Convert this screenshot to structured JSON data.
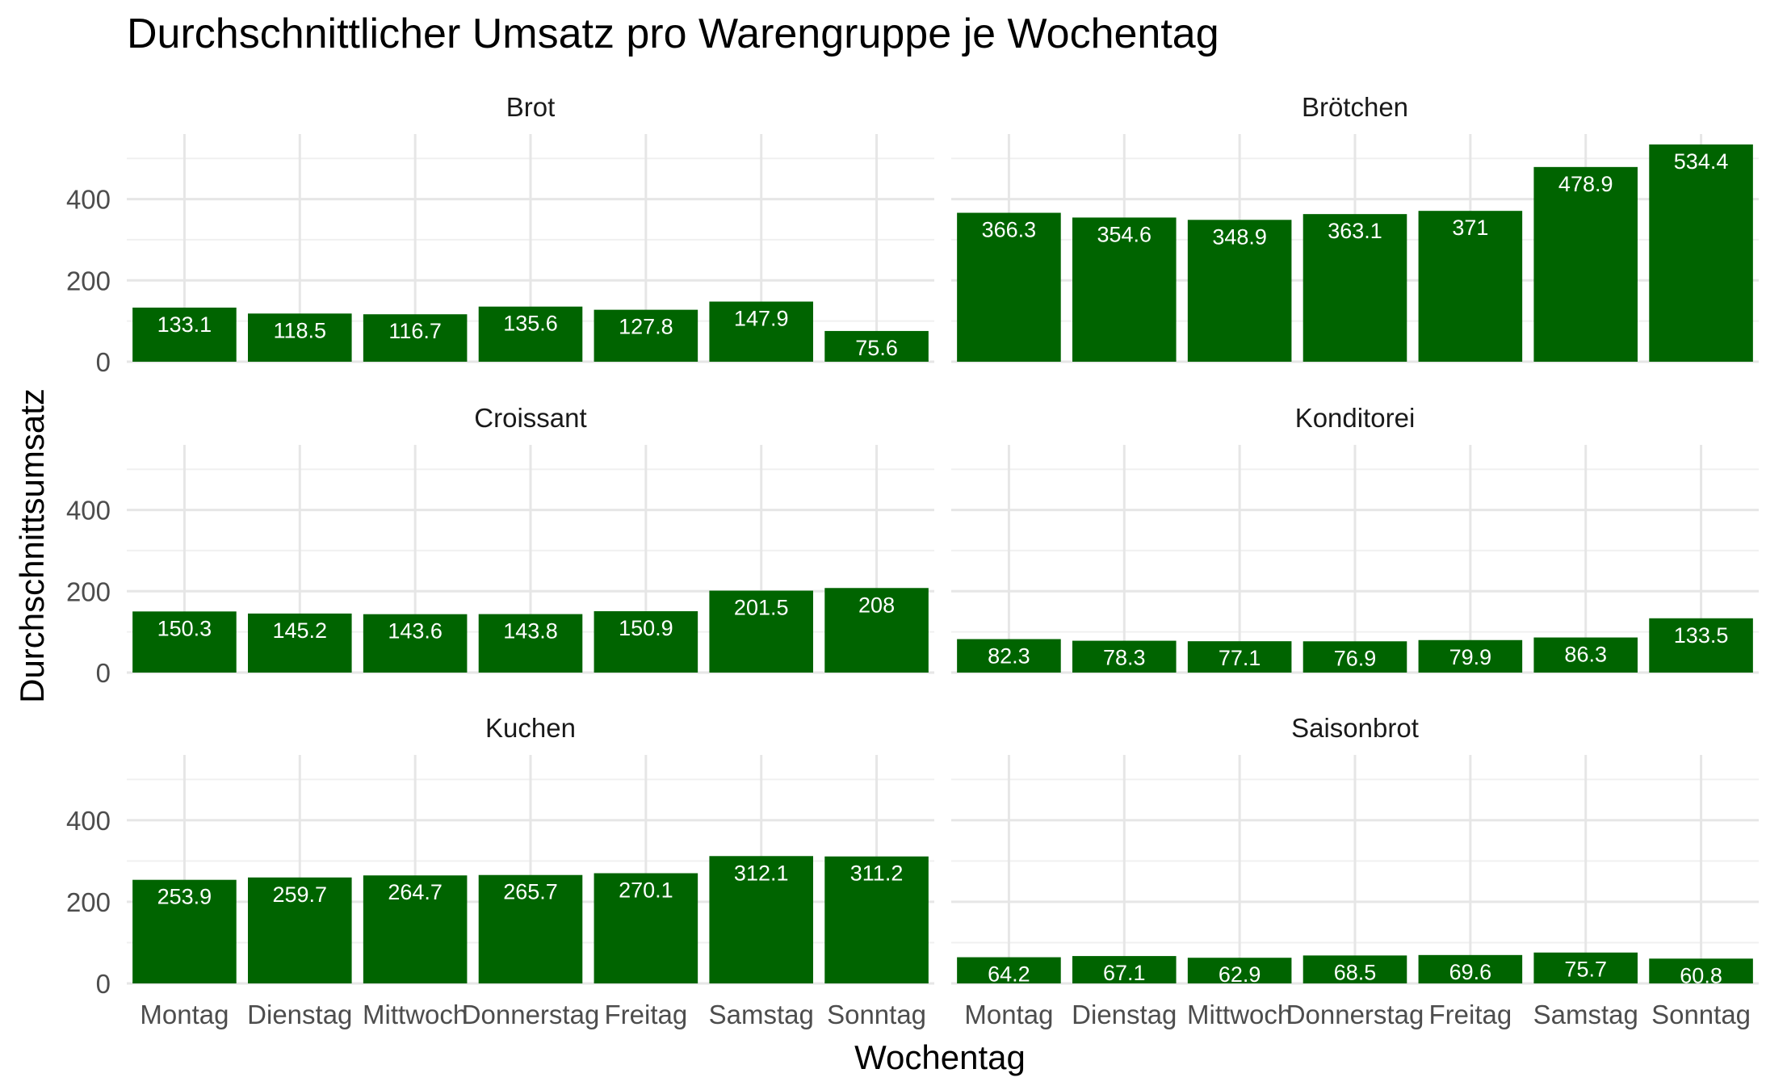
{
  "chart_data": {
    "type": "bar",
    "title": "Durchschnittlicher Umsatz pro Warengruppe je Wochentag",
    "xlabel": "Wochentag",
    "ylabel": "Durchschnittsumsatz",
    "categories": [
      "Montag",
      "Dienstag",
      "Mittwoch",
      "Donnerstag",
      "Freitag",
      "Samstag",
      "Sonntag"
    ],
    "ylim": [
      0,
      560
    ],
    "yticks": [
      0,
      200,
      400
    ],
    "grid": true,
    "bar_color": "#006400",
    "layout": "facet 3 rows x 2 columns, shared axes",
    "panels": [
      {
        "name": "Brot",
        "values": [
          133.1,
          118.5,
          116.7,
          135.6,
          127.8,
          147.9,
          75.6
        ]
      },
      {
        "name": "Brötchen",
        "values": [
          366.3,
          354.6,
          348.9,
          363.1,
          371,
          478.9,
          534.4
        ]
      },
      {
        "name": "Croissant",
        "values": [
          150.3,
          145.2,
          143.6,
          143.8,
          150.9,
          201.5,
          208
        ]
      },
      {
        "name": "Konditorei",
        "values": [
          82.3,
          78.3,
          77.1,
          76.9,
          79.9,
          86.3,
          133.5
        ]
      },
      {
        "name": "Kuchen",
        "values": [
          253.9,
          259.7,
          264.7,
          265.7,
          270.1,
          312.1,
          311.2
        ]
      },
      {
        "name": "Saisonbrot",
        "values": [
          64.2,
          67.1,
          62.9,
          68.5,
          69.6,
          75.7,
          60.8
        ]
      }
    ]
  }
}
